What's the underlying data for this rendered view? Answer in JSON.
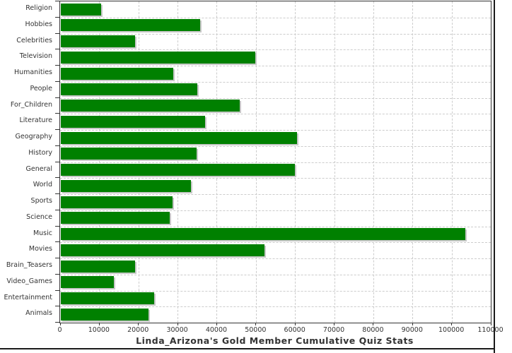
{
  "chart_data": {
    "type": "bar",
    "orientation": "horizontal",
    "title": "Linda_Arizona's Gold Member Cumulative Quiz Stats",
    "categories": [
      "Religion",
      "Hobbies",
      "Celebrities",
      "Television",
      "Humanities",
      "People",
      "For_Children",
      "Literature",
      "Geography",
      "History",
      "General",
      "World",
      "Sports",
      "Science",
      "Music",
      "Movies",
      "Brain_Teasers",
      "Video_Games",
      "Entertainment",
      "Animals"
    ],
    "values": [
      10300,
      35600,
      18900,
      49700,
      28700,
      34900,
      45700,
      36900,
      60300,
      34700,
      59800,
      33300,
      28600,
      27800,
      103400,
      52100,
      19000,
      13600,
      23900,
      22400
    ],
    "xlim": [
      0,
      110000
    ],
    "x_tick_interval": 10000,
    "x_tick_labels": [
      "0",
      "10000",
      "20000",
      "30000",
      "40000",
      "50000",
      "60000",
      "70000",
      "80000",
      "90000",
      "100000",
      "110000"
    ],
    "grid": "dashed",
    "legend": "none",
    "bar_color": "#008000",
    "bar_shadow_color": "#c8c8c8",
    "gridline_color": "#cccccc",
    "axis_color": "#333333",
    "text_color": "#333333"
  }
}
